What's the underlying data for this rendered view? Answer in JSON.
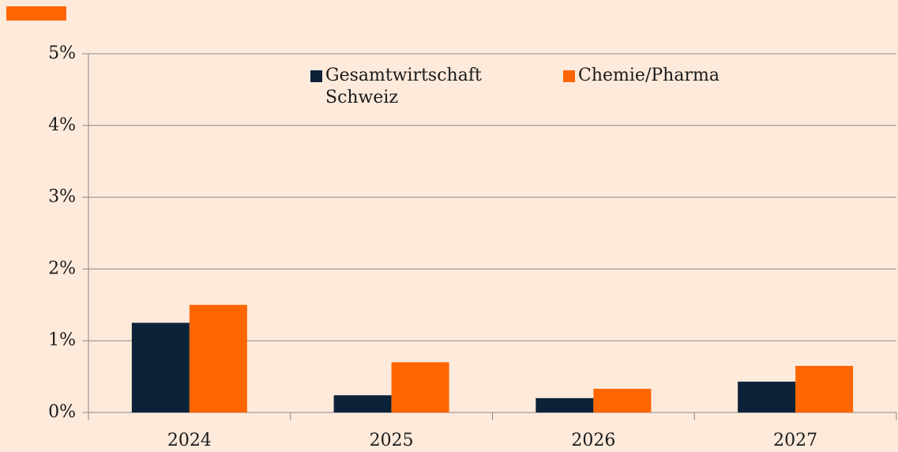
{
  "chart_data": {
    "type": "bar",
    "categories": [
      "2024",
      "2025",
      "2026",
      "2027"
    ],
    "series": [
      {
        "name": "Gesamtwirtschaft Schweiz",
        "color": "#0c2238",
        "values": [
          1.25,
          0.24,
          0.2,
          0.43
        ]
      },
      {
        "name": "Chemie/Pharma",
        "color": "#ff6600",
        "values": [
          1.5,
          0.7,
          0.33,
          0.65
        ]
      }
    ],
    "ylim": [
      0,
      5
    ],
    "yticks": [
      {
        "value": 0,
        "label": "0%"
      },
      {
        "value": 1,
        "label": "1%"
      },
      {
        "value": 2,
        "label": "2%"
      },
      {
        "value": 3,
        "label": "3%"
      },
      {
        "value": 4,
        "label": "4%"
      },
      {
        "value": 5,
        "label": "5%"
      }
    ],
    "grid": true
  }
}
